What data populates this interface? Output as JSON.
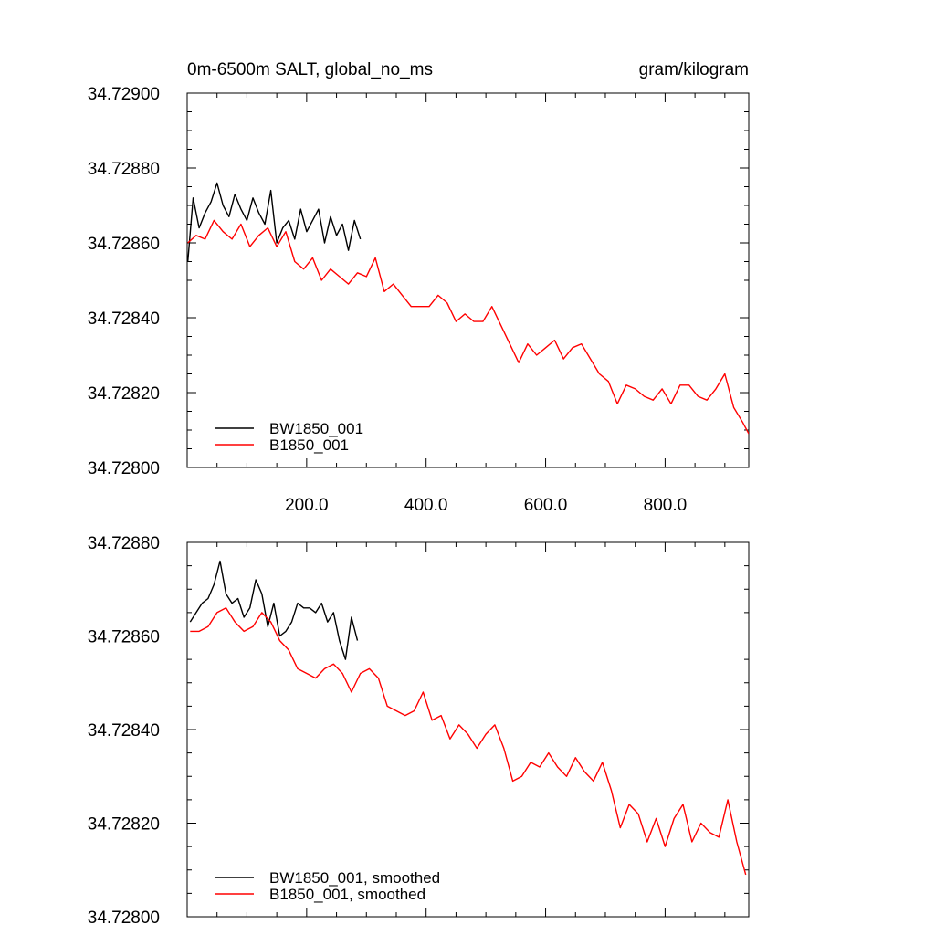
{
  "figure": {
    "title_left": "0m-6500m SALT, global_no_ms",
    "title_right": "gram/kilogram"
  },
  "chart_data": [
    {
      "type": "line",
      "panel": "top",
      "xlim": [
        0,
        940
      ],
      "ylim": [
        34.728,
        34.729
      ],
      "x_tick_values": [
        200,
        400,
        600,
        800
      ],
      "x_tick_labels": [
        "200.0",
        "400.0",
        "600.0",
        "800.0"
      ],
      "y_tick_values": [
        34.728,
        34.7282,
        34.7284,
        34.7286,
        34.7288,
        34.729
      ],
      "y_tick_labels": [
        "34.72800",
        "34.72820",
        "34.72840",
        "34.72860",
        "34.72880",
        "34.72900"
      ],
      "legend_position": "bottom-left",
      "series": [
        {
          "name": "BW1850_001",
          "color": "#000000",
          "x": [
            1,
            10,
            20,
            30,
            40,
            50,
            60,
            70,
            80,
            90,
            100,
            110,
            120,
            130,
            140,
            150,
            160,
            170,
            180,
            190,
            200,
            210,
            220,
            230,
            240,
            250,
            260,
            270,
            280,
            290
          ],
          "y": [
            34.72855,
            34.72872,
            34.72864,
            34.72868,
            34.72871,
            34.72876,
            34.7287,
            34.72867,
            34.72873,
            34.72869,
            34.72866,
            34.72872,
            34.72868,
            34.72865,
            34.72874,
            34.7286,
            34.72864,
            34.72866,
            34.72861,
            34.72869,
            34.72863,
            34.72866,
            34.72869,
            34.7286,
            34.72867,
            34.72862,
            34.72865,
            34.72858,
            34.72866,
            34.72861
          ]
        },
        {
          "name": "B1850_001",
          "color": "#ff0000",
          "x": [
            1,
            15,
            30,
            45,
            60,
            75,
            90,
            105,
            120,
            135,
            150,
            165,
            180,
            195,
            210,
            225,
            240,
            255,
            270,
            285,
            300,
            315,
            330,
            345,
            360,
            375,
            390,
            405,
            420,
            435,
            450,
            465,
            480,
            495,
            510,
            525,
            540,
            555,
            570,
            585,
            600,
            615,
            630,
            645,
            660,
            675,
            690,
            705,
            720,
            735,
            750,
            765,
            780,
            795,
            810,
            825,
            840,
            855,
            870,
            885,
            900,
            915,
            930,
            940
          ],
          "y": [
            34.7286,
            34.72862,
            34.72861,
            34.72866,
            34.72863,
            34.72861,
            34.72865,
            34.72859,
            34.72862,
            34.72864,
            34.72859,
            34.72863,
            34.72855,
            34.72853,
            34.72856,
            34.7285,
            34.72853,
            34.72851,
            34.72849,
            34.72852,
            34.72851,
            34.72856,
            34.72847,
            34.72849,
            34.72846,
            34.72843,
            34.72843,
            34.72843,
            34.72846,
            34.72844,
            34.72839,
            34.72841,
            34.72839,
            34.72839,
            34.72843,
            34.72838,
            34.72833,
            34.72828,
            34.72833,
            34.7283,
            34.72832,
            34.72834,
            34.72829,
            34.72832,
            34.72833,
            34.72829,
            34.72825,
            34.72823,
            34.72817,
            34.72822,
            34.72821,
            34.72819,
            34.72818,
            34.72821,
            34.72817,
            34.72822,
            34.72822,
            34.72819,
            34.72818,
            34.72821,
            34.72825,
            34.72816,
            34.72812,
            34.72809
          ]
        }
      ]
    },
    {
      "type": "line",
      "panel": "bottom",
      "xlim": [
        0,
        940
      ],
      "ylim": [
        34.728,
        34.7288
      ],
      "x_tick_values": [
        200,
        400,
        600,
        800
      ],
      "y_tick_values": [
        34.728,
        34.7282,
        34.7284,
        34.7286,
        34.7288
      ],
      "y_tick_labels": [
        "34.72800",
        "34.72820",
        "34.72840",
        "34.72860",
        "34.72880"
      ],
      "legend_position": "bottom-left",
      "series": [
        {
          "name": "BW1850_001, smoothed",
          "color": "#000000",
          "x": [
            5,
            15,
            25,
            35,
            45,
            55,
            65,
            75,
            85,
            95,
            105,
            115,
            125,
            135,
            145,
            155,
            165,
            175,
            185,
            195,
            205,
            215,
            225,
            235,
            245,
            255,
            265,
            275,
            285
          ],
          "y": [
            34.72863,
            34.72865,
            34.72867,
            34.72868,
            34.72871,
            34.72876,
            34.72869,
            34.72867,
            34.72868,
            34.72864,
            34.72866,
            34.72872,
            34.72869,
            34.72862,
            34.72867,
            34.7286,
            34.72861,
            34.72863,
            34.72867,
            34.72866,
            34.72866,
            34.72865,
            34.72867,
            34.72863,
            34.72865,
            34.72859,
            34.72855,
            34.72864,
            34.72859
          ]
        },
        {
          "name": "B1850_001, smoothed",
          "color": "#ff0000",
          "x": [
            5,
            20,
            35,
            50,
            65,
            80,
            95,
            110,
            125,
            140,
            155,
            170,
            185,
            200,
            215,
            230,
            245,
            260,
            275,
            290,
            305,
            320,
            335,
            350,
            365,
            380,
            395,
            410,
            425,
            440,
            455,
            470,
            485,
            500,
            515,
            530,
            545,
            560,
            575,
            590,
            605,
            620,
            635,
            650,
            665,
            680,
            695,
            710,
            725,
            740,
            755,
            770,
            785,
            800,
            815,
            830,
            845,
            860,
            875,
            890,
            905,
            920,
            935
          ],
          "y": [
            34.72861,
            34.72861,
            34.72862,
            34.72865,
            34.72866,
            34.72863,
            34.72861,
            34.72862,
            34.72865,
            34.72863,
            34.72859,
            34.72857,
            34.72853,
            34.72852,
            34.72851,
            34.72853,
            34.72854,
            34.72852,
            34.72848,
            34.72852,
            34.72853,
            34.72851,
            34.72845,
            34.72844,
            34.72843,
            34.72844,
            34.72848,
            34.72842,
            34.72843,
            34.72838,
            34.72841,
            34.72839,
            34.72836,
            34.72839,
            34.72841,
            34.72836,
            34.72829,
            34.7283,
            34.72833,
            34.72832,
            34.72835,
            34.72832,
            34.7283,
            34.72834,
            34.72831,
            34.72829,
            34.72833,
            34.72827,
            34.72819,
            34.72824,
            34.72822,
            34.72816,
            34.72821,
            34.72815,
            34.72821,
            34.72824,
            34.72816,
            34.7282,
            34.72818,
            34.72817,
            34.72825,
            34.72816,
            34.72809
          ]
        }
      ]
    }
  ]
}
